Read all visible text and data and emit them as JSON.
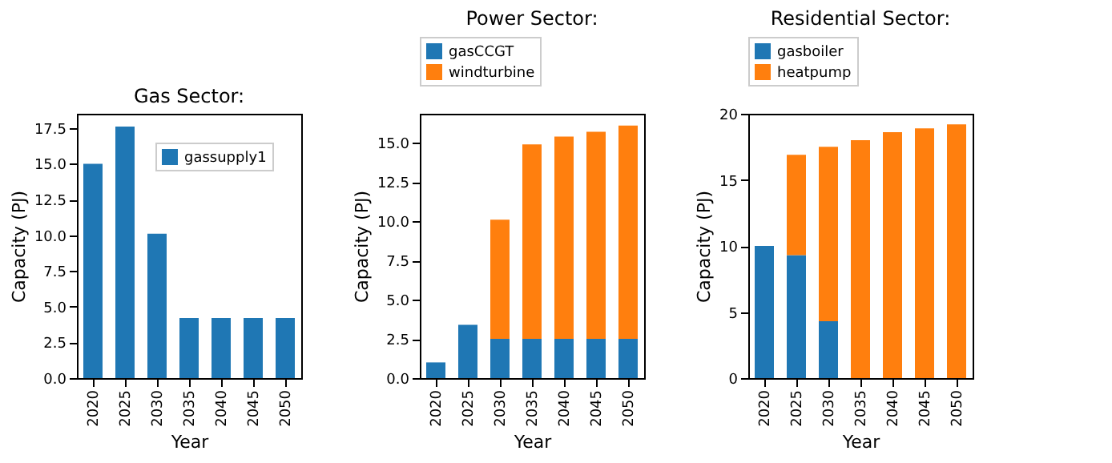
{
  "chart_data": [
    {
      "type": "bar",
      "title": "Gas Sector:",
      "xlabel": "Year",
      "ylabel": "Capacity (PJ)",
      "categories": [
        "2020",
        "2025",
        "2030",
        "2035",
        "2040",
        "2045",
        "2050"
      ],
      "series": [
        {
          "name": "gassupply1",
          "color": "#1f77b4",
          "values": [
            15.0,
            17.6,
            10.1,
            4.2,
            4.2,
            4.2,
            4.2
          ]
        }
      ],
      "ylim": [
        0,
        18.5
      ],
      "yticks": [
        {
          "value": 0,
          "label": "0.0"
        },
        2.5,
        {
          "value": 5,
          "label": "5.0"
        },
        7.5,
        {
          "value": 10,
          "label": "10.0"
        },
        12.5,
        {
          "value": 15,
          "label": "15.0"
        },
        17.5
      ],
      "grid": false,
      "legend": "top right"
    },
    {
      "type": "bar",
      "title": "Power Sector:",
      "xlabel": "Year",
      "ylabel": "Capacity (PJ)",
      "categories": [
        "2020",
        "2025",
        "2030",
        "2035",
        "2040",
        "2045",
        "2050"
      ],
      "stacked": true,
      "series": [
        {
          "name": "gasCCGT",
          "color": "#1f77b4",
          "values": [
            1.0,
            3.4,
            2.5,
            2.5,
            2.5,
            2.5,
            2.5
          ]
        },
        {
          "name": "windturbine",
          "color": "#ff7f0e",
          "values": [
            0,
            0,
            7.6,
            12.4,
            12.9,
            13.2,
            13.6
          ]
        }
      ],
      "ylim": [
        0,
        16.85
      ],
      "yticks": [
        {
          "value": 0,
          "label": "0.0"
        },
        2.5,
        {
          "value": 5,
          "label": "5.0"
        },
        7.5,
        {
          "value": 10,
          "label": "10.0"
        },
        12.5,
        {
          "value": 15,
          "label": "15.0"
        }
      ],
      "grid": false,
      "legend": "top"
    },
    {
      "type": "bar",
      "title": "Residential Sector:",
      "xlabel": "Year",
      "ylabel": "Capacity (PJ)",
      "categories": [
        "2020",
        "2025",
        "2030",
        "2035",
        "2040",
        "2045",
        "2050"
      ],
      "stacked": true,
      "series": [
        {
          "name": "gasboiler",
          "color": "#1f77b4",
          "values": [
            10.0,
            9.3,
            4.3,
            0,
            0,
            0,
            0
          ]
        },
        {
          "name": "heatpump",
          "color": "#ff7f0e",
          "values": [
            0,
            7.6,
            13.2,
            18.0,
            18.6,
            18.9,
            19.2
          ]
        }
      ],
      "ylim": [
        0,
        20
      ],
      "yticks": [
        0,
        5,
        10,
        15,
        20
      ],
      "grid": false,
      "legend": "top"
    }
  ]
}
